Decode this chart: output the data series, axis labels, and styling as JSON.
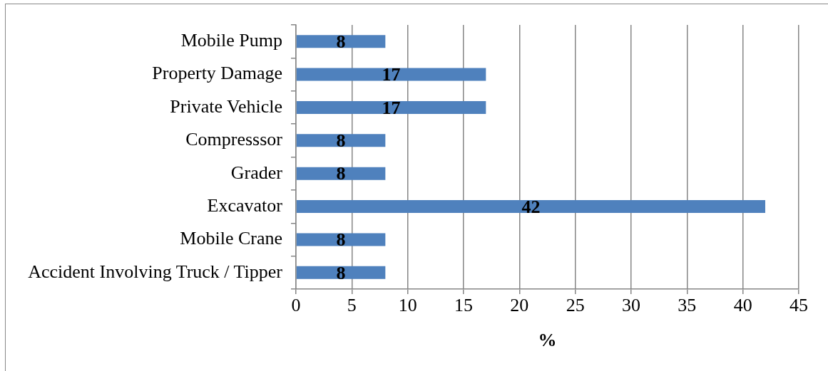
{
  "chart_data": {
    "type": "bar",
    "orientation": "horizontal",
    "categories": [
      "Mobile Pump",
      "Property Damage",
      "Private Vehicle",
      "Compresssor",
      "Grader",
      "Excavator",
      "Mobile Crane",
      "Accident Involving Truck / Tipper"
    ],
    "values": [
      8,
      17,
      17,
      8,
      8,
      42,
      8,
      8
    ],
    "color": "#4f81bd",
    "xlabel": "%",
    "xlim": [
      0,
      45
    ],
    "xticks": [
      0,
      5,
      10,
      15,
      20,
      25,
      30,
      35,
      40,
      45
    ],
    "grid": "x",
    "data_labels": true
  }
}
